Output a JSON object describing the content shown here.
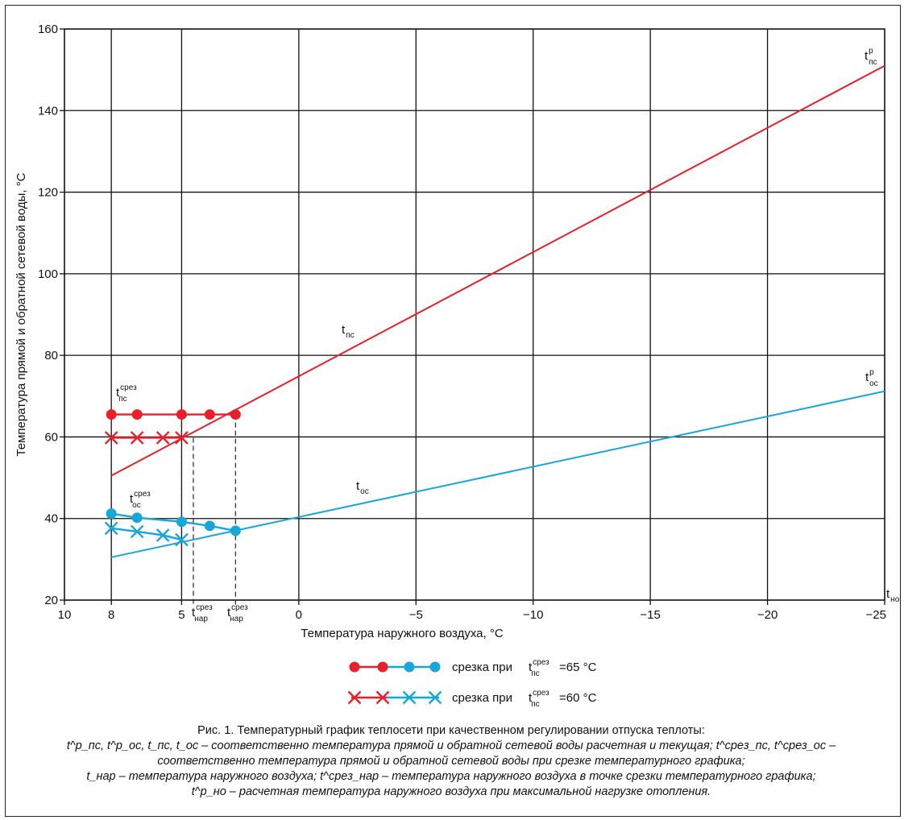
{
  "chart_data": {
    "type": "line",
    "ylabel": "Температура прямой и обратной сетевой воды, °С",
    "xlabel": "Температура наружного воздуха, °С",
    "xlim": [
      10,
      -25
    ],
    "ylim": [
      20,
      160
    ],
    "x_ticks": [
      10,
      8,
      5,
      0,
      -5,
      -10,
      -15,
      -20,
      -25
    ],
    "x_tick_labels": [
      "10",
      "8",
      "5",
      "0",
      "−5",
      "−10",
      "−15",
      "−20",
      "−25"
    ],
    "y_ticks": [
      20,
      40,
      60,
      80,
      100,
      120,
      140,
      160
    ],
    "x_grid": [
      10,
      8,
      5,
      0,
      -5,
      -10,
      -15,
      -20,
      -25
    ],
    "grid": true,
    "colors": {
      "red": "#e8202a",
      "blue": "#17a6d8",
      "grid": "#111111",
      "dashed": "#222222"
    },
    "series": [
      {
        "name": "t_пс",
        "color": "#e8202a",
        "x": [
          8,
          -25
        ],
        "y": [
          50.5,
          151
        ]
      },
      {
        "name": "t_ос",
        "color": "#17a6d8",
        "x": [
          8,
          -25
        ],
        "y": [
          30.5,
          71.2
        ]
      },
      {
        "name": "срезка 65 — t_пс",
        "color": "#e8202a",
        "marker": "circle",
        "x": [
          8,
          6.9,
          5,
          3.8,
          2.7
        ],
        "y": [
          65.5,
          65.5,
          65.5,
          65.5,
          65.5
        ]
      },
      {
        "name": "срезка 65 — t_ос",
        "color": "#17a6d8",
        "marker": "circle",
        "x": [
          8,
          6.9,
          5,
          3.8,
          2.7
        ],
        "y": [
          41.2,
          40.2,
          39.2,
          38.2,
          37.0
        ]
      },
      {
        "name": "срезка 60 — t_пс",
        "color": "#e8202a",
        "marker": "x",
        "x": [
          8,
          6.9,
          5.8,
          5
        ],
        "y": [
          59.8,
          59.8,
          59.8,
          59.8
        ]
      },
      {
        "name": "срезка 60 — t_ос",
        "color": "#17a6d8",
        "marker": "x",
        "x": [
          8,
          6.9,
          5.8,
          5
        ],
        "y": [
          37.6,
          36.8,
          35.9,
          34.8
        ]
      }
    ],
    "dashed_verticals": [
      {
        "x": 8,
        "y_top": 65.5
      },
      {
        "x": 5,
        "y_top": 65.5
      },
      {
        "x": 4.5,
        "y_top": 59.8
      },
      {
        "x": 2.7,
        "y_top": 65.5
      }
    ],
    "labels": {
      "t_ps_base": "t",
      "t_ps_sub": "пс",
      "t_os_base": "t",
      "t_os_sub": "ос",
      "t_ps_p_sup": "р",
      "t_os_p_sup": "р",
      "t_no_base": "t",
      "t_no_sub": "но",
      "srez_sup": "срез",
      "t_nar_sub": "нар"
    },
    "legend": [
      {
        "marker": "circle",
        "text": "срезка при",
        "value": "=65 °С"
      },
      {
        "marker": "x",
        "text": "срезка при",
        "value": "=60 °С"
      }
    ]
  },
  "caption": {
    "line1": "Рис. 1. Температурный график теплосети при качественном регулировании отпуска теплоты:",
    "line2": "t^p_пс, t^p_ос, t_пс, t_ос – соответственно температура прямой и обратной сетевой воды расчетная и текущая; t^срез_пс, t^срез_ос –",
    "line3": "соответственно температура прямой и обратной сетевой воды при срезке температурного графика;",
    "line4": "t_нар – температура наружного воздуха; t^срез_нар – температура наружного воздуха в точке срезки температурного графика;",
    "line5": "t^p_но – расчетная температура наружного воздуха при максимальной нагрузке отопления."
  }
}
